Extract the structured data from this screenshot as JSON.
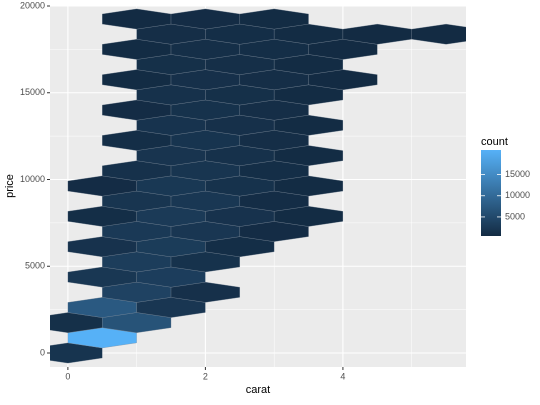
{
  "chart_data": {
    "type": "hexbin",
    "x_label": "carat",
    "y_label": "price",
    "xlim": [
      -0.26,
      5.79
    ],
    "xticks": [
      0,
      2,
      4
    ],
    "ylim": [
      -807,
      20000
    ],
    "yticks": [
      0,
      5000,
      10000,
      15000,
      20000
    ],
    "grid": true,
    "x": [
      0,
      0.5,
      0,
      1,
      0.5,
      1.5,
      1,
      2,
      0.5,
      1.5,
      1,
      2,
      0.5,
      1.5,
      2.5,
      1,
      2,
      3,
      0.5,
      1.5,
      2.5,
      3.5,
      1,
      2,
      3,
      0.5,
      1.5,
      2.5,
      3.5,
      1,
      2,
      3,
      1.5,
      2.5,
      3.5,
      1,
      2,
      3,
      1.5,
      2.5,
      3.5,
      1,
      2,
      3,
      1.5,
      2.5,
      3.5,
      1,
      2,
      3,
      4,
      1.5,
      2.5,
      3.5,
      1,
      2,
      3,
      4,
      1.5,
      2.5,
      3.5,
      4.5,
      5.5,
      1,
      2,
      3
    ],
    "y": [
      0,
      875,
      1750,
      1750,
      2625,
      2625,
      3500,
      3500,
      4375,
      4375,
      5250,
      5250,
      6125,
      6125,
      6125,
      7000,
      7000,
      7000,
      7875,
      7875,
      7875,
      7875,
      8750,
      8750,
      8750,
      9625,
      9625,
      9625,
      9625,
      10500,
      10500,
      10500,
      11375,
      11375,
      11375,
      12250,
      12250,
      12250,
      13125,
      13125,
      13125,
      14000,
      14000,
      14000,
      14875,
      14875,
      14875,
      15750,
      15750,
      15750,
      15750,
      16625,
      16625,
      16625,
      17500,
      17500,
      17500,
      17500,
      18375,
      18375,
      18375,
      18375,
      18375,
      19250,
      19250,
      19250
    ],
    "values": [
      1800,
      20800,
      1200,
      6500,
      7500,
      2200,
      4000,
      1300,
      2300,
      3300,
      3200,
      1500,
      1600,
      3000,
      900,
      2600,
      2200,
      700,
      900,
      2800,
      1600,
      600,
      2000,
      2300,
      800,
      700,
      2400,
      1500,
      600,
      1400,
      2000,
      900,
      1900,
      1400,
      600,
      900,
      1800,
      1000,
      1700,
      1300,
      600,
      700,
      1500,
      1000,
      1400,
      1200,
      600,
      600,
      1300,
      1000,
      500,
      1200,
      1100,
      600,
      600,
      1100,
      900,
      500,
      1000,
      900,
      600,
      500,
      500,
      500,
      700,
      600
    ],
    "colorbar": {
      "title": "count",
      "low": "#132B43",
      "high": "#56B1F7",
      "clim": [
        500,
        20800
      ],
      "ticks": [
        5000,
        10000,
        15000
      ]
    }
  }
}
